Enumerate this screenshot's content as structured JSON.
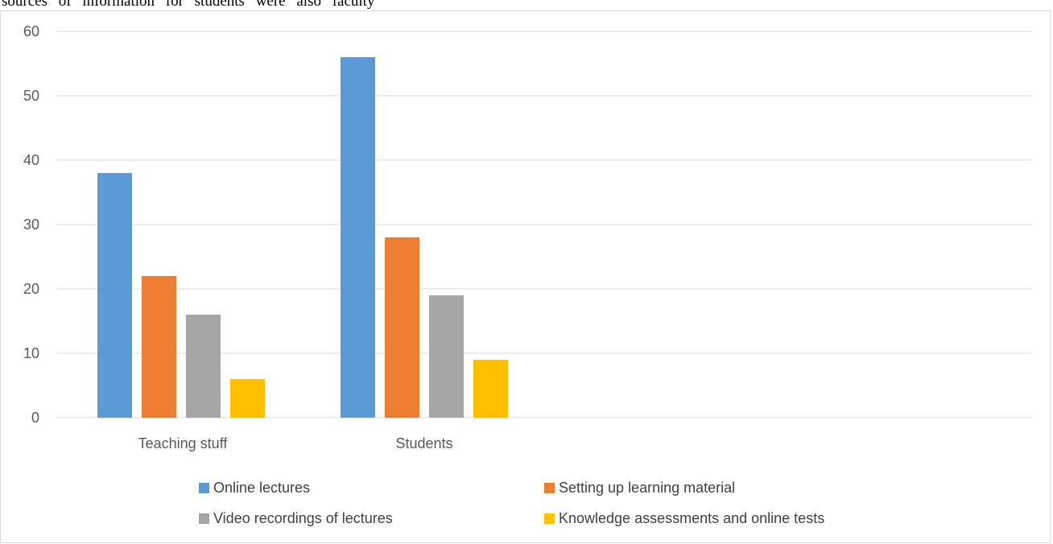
{
  "page": {
    "top_text": "sources of information for students were also faculty"
  },
  "chart_data": {
    "type": "bar",
    "title": "",
    "xlabel": "",
    "ylabel": "",
    "categories": [
      "Teaching stuff",
      "Students"
    ],
    "ylim": [
      0,
      60
    ],
    "yticks": [
      0,
      10,
      20,
      30,
      40,
      50,
      60
    ],
    "grid": true,
    "legend_position": "bottom",
    "series": [
      {
        "name": "Online lectures",
        "color": "#5b9bd5",
        "values": [
          38,
          56
        ]
      },
      {
        "name": "Setting up learning material",
        "color": "#ed7d31",
        "values": [
          22,
          28
        ]
      },
      {
        "name": "Video recordings of lectures",
        "color": "#a5a5a5",
        "values": [
          16,
          19
        ]
      },
      {
        "name": "Knowledge assessments and online tests",
        "color": "#ffc000",
        "values": [
          6,
          9
        ]
      }
    ]
  }
}
